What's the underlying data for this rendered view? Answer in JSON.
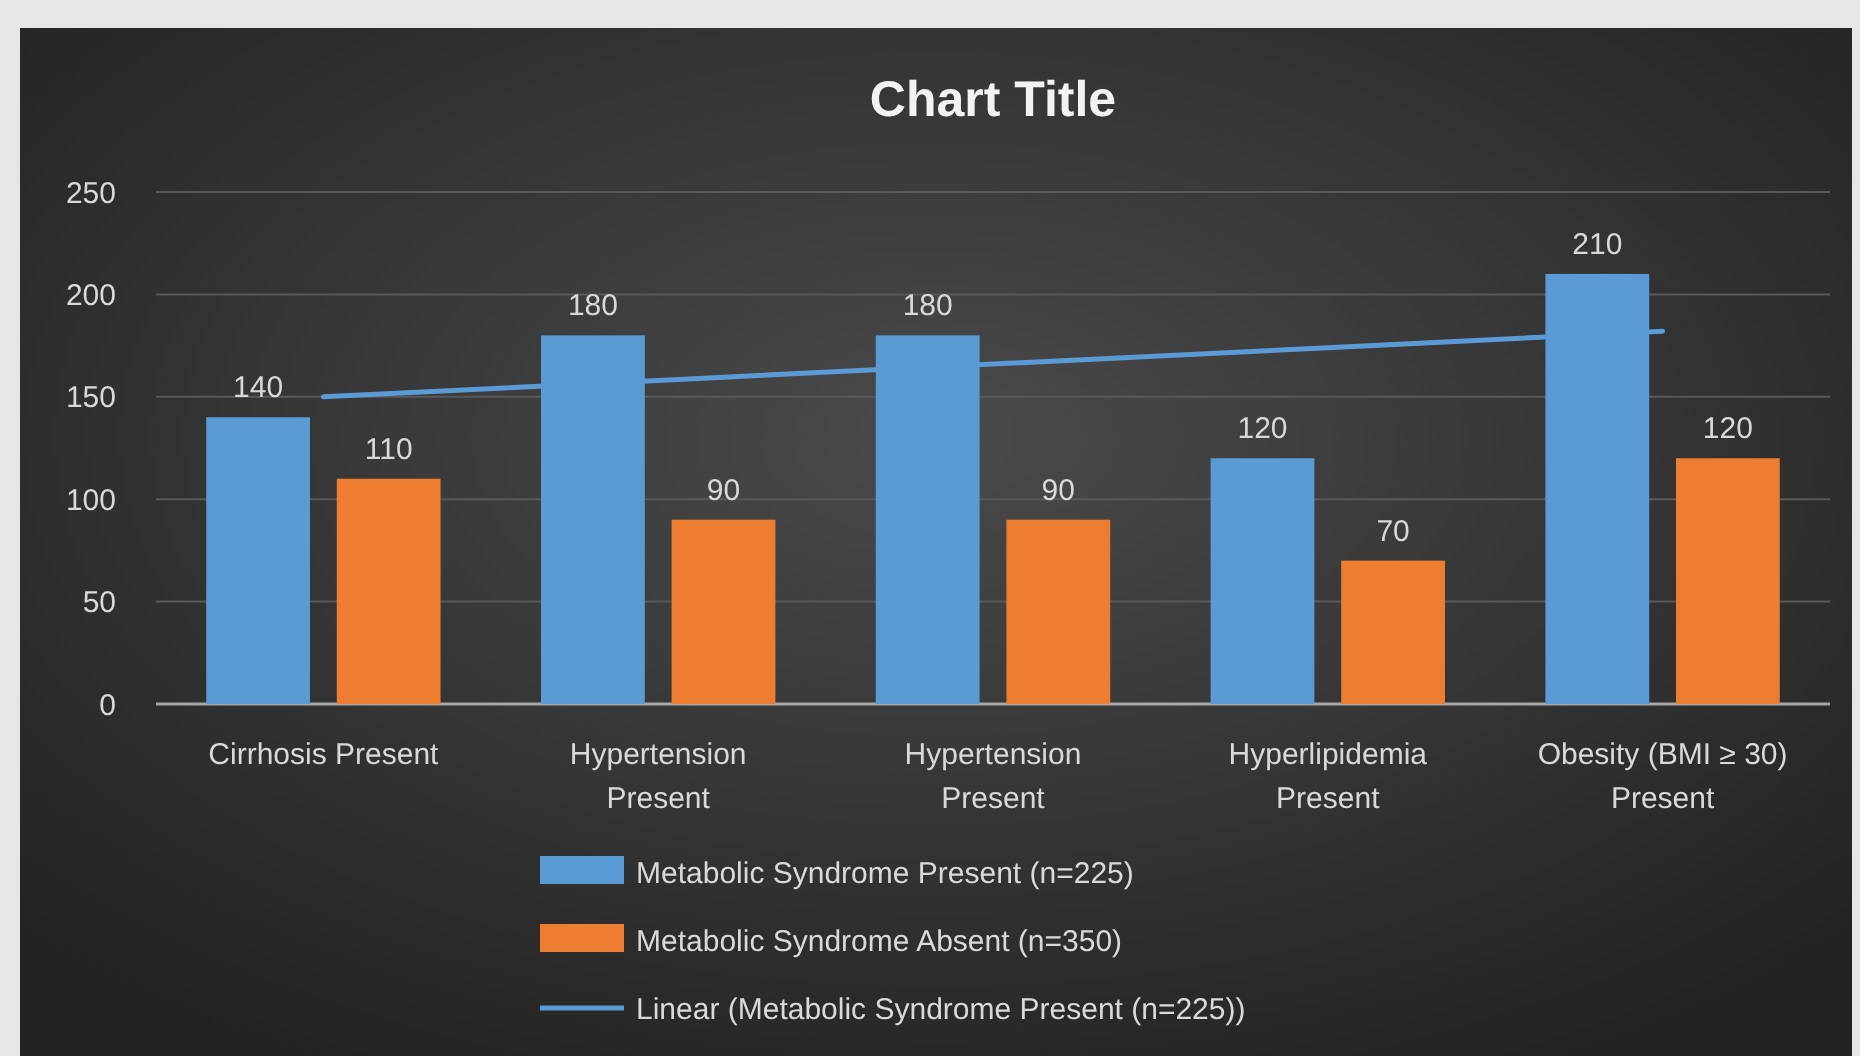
{
  "chart_data": {
    "type": "bar",
    "title": "Chart Title",
    "categories": [
      "Cirrhosis Present",
      "Hypertension Present",
      "Hypertension Present",
      "Hyperlipidemia Present",
      "Obesity (BMI ≥ 30) Present"
    ],
    "series": [
      {
        "name": "Metabolic Syndrome Present (n=225)",
        "color": "#5b9bd5",
        "values": [
          140,
          180,
          180,
          120,
          210
        ],
        "value_labels": [
          "140",
          "180",
          "180",
          "120",
          "210"
        ]
      },
      {
        "name": "Metabolic Syndrome Absent (n=350)",
        "color": "#ed7d31",
        "values": [
          110,
          90,
          90,
          70,
          120
        ],
        "value_labels": [
          "110",
          "90",
          "90",
          "70",
          "120"
        ]
      },
      {
        "name": "Linear (Metabolic Syndrome Present (n=225))",
        "type": "line",
        "color": "#5b9bd5",
        "values": [
          150,
          158,
          166,
          174,
          182
        ]
      }
    ],
    "ylim": [
      0,
      250
    ],
    "yticks": [
      0,
      50,
      100,
      150,
      200,
      250
    ],
    "grid": "y",
    "legend": "bottom"
  }
}
